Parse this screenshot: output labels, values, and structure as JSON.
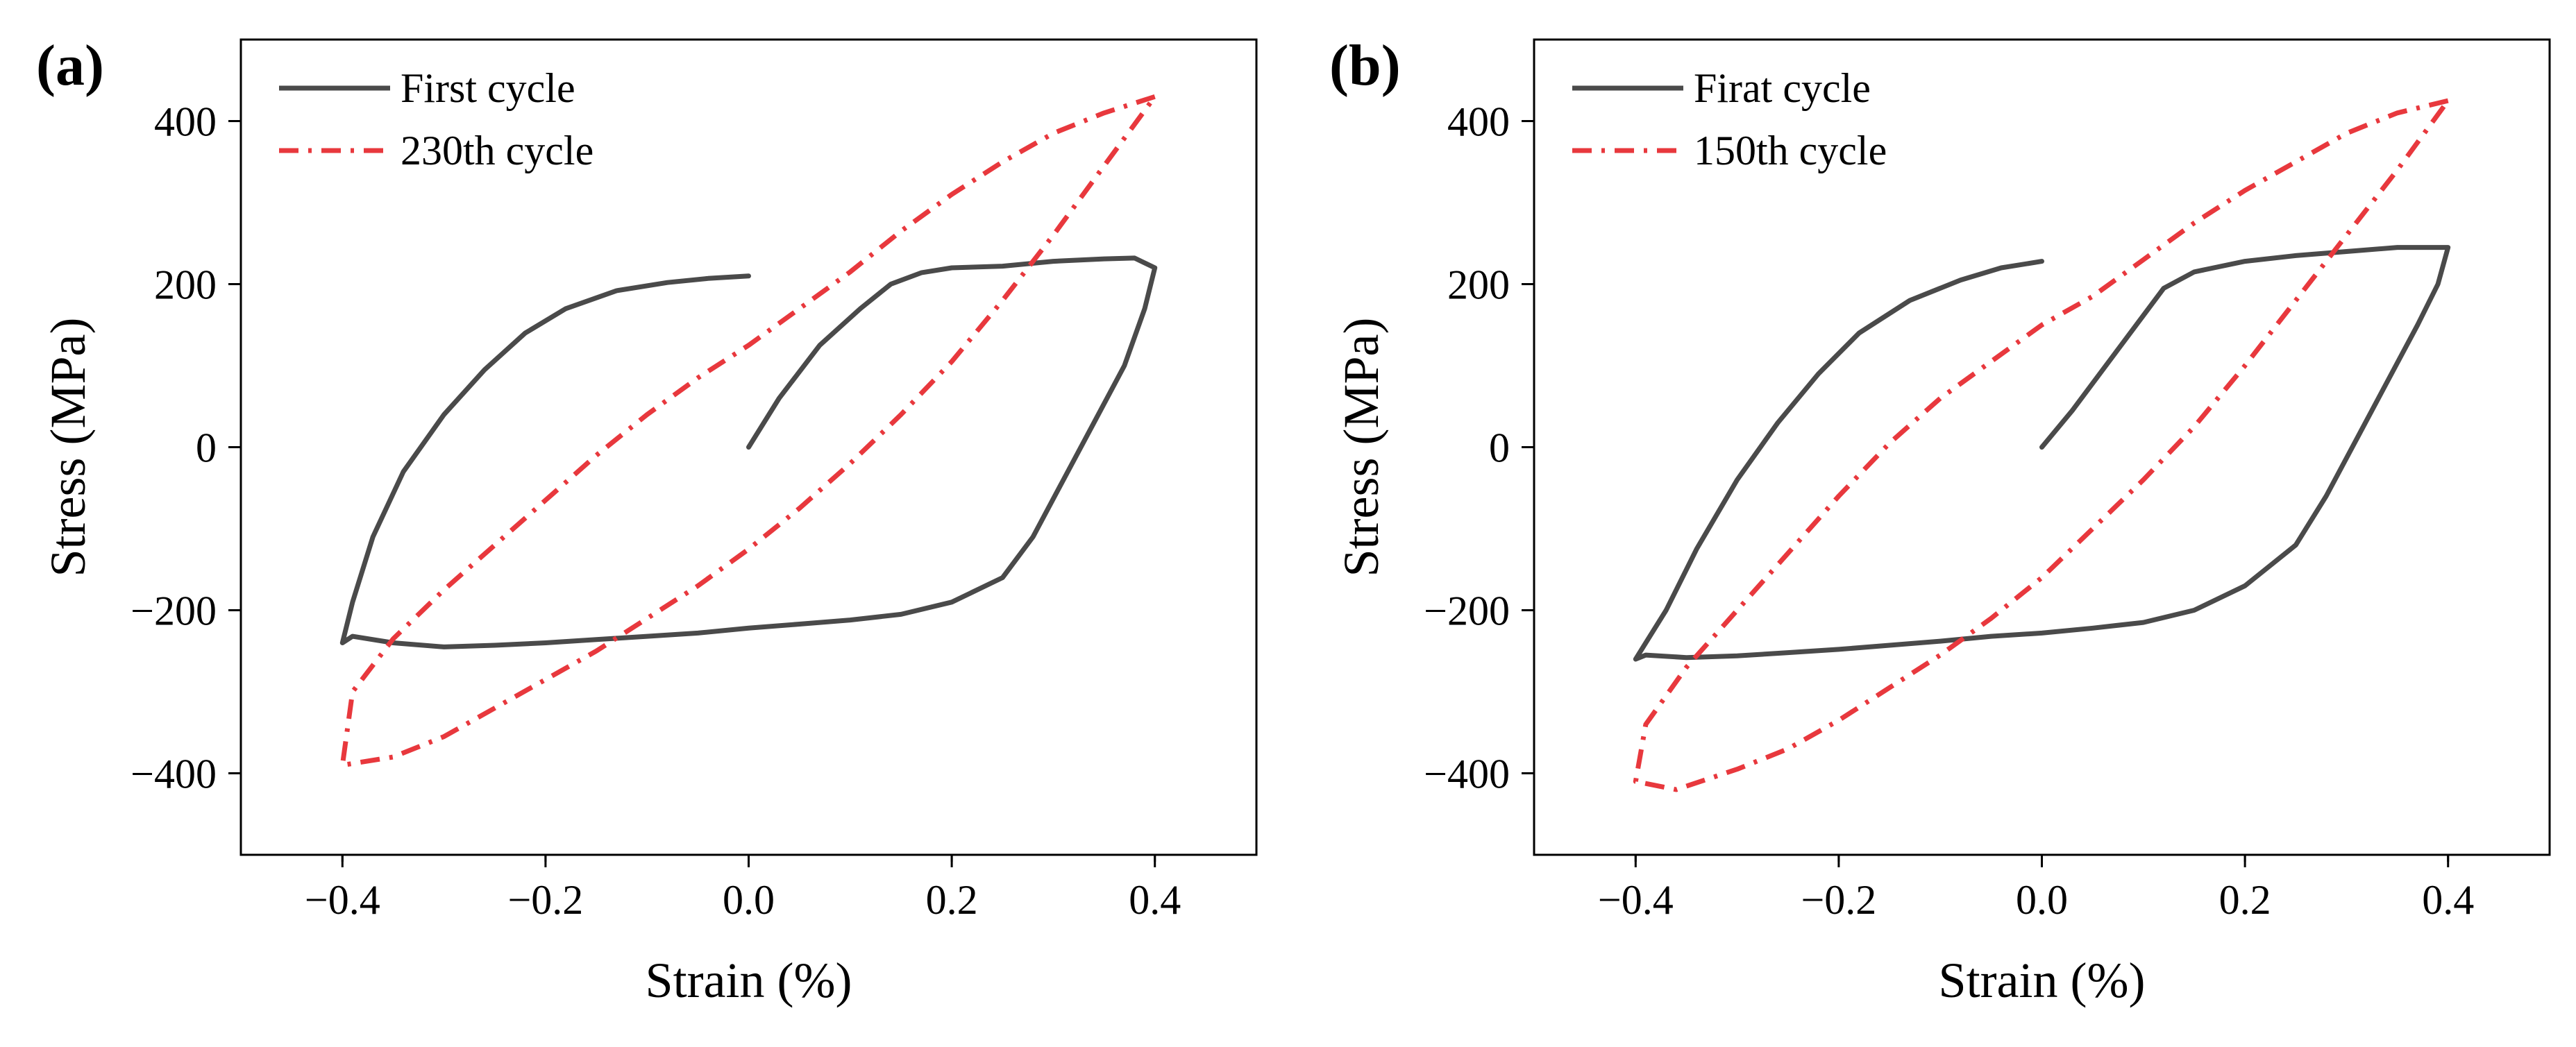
{
  "chart_data": [
    {
      "type": "line",
      "panel_label": "(a)",
      "xlabel": "Strain (%)",
      "ylabel": "Stress (MPa)",
      "xlim": [
        -0.5,
        0.5
      ],
      "ylim": [
        -500,
        500
      ],
      "xticks": [
        -0.4,
        -0.2,
        0.0,
        0.2,
        0.4
      ],
      "xtick_labels": [
        "−0.4",
        "−0.2",
        "0.0",
        "0.2",
        "0.4"
      ],
      "yticks": [
        -400,
        -200,
        0,
        200,
        400
      ],
      "ytick_labels": [
        "−400",
        "−200",
        "0",
        "200",
        "400"
      ],
      "legend_position": "top-left",
      "series": [
        {
          "name": "First cycle",
          "style": "solid",
          "color": "#4a4a4a",
          "x": [
            0.0,
            0.03,
            0.07,
            0.11,
            0.14,
            0.17,
            0.2,
            0.25,
            0.3,
            0.35,
            0.38,
            0.4,
            0.39,
            0.37,
            0.34,
            0.31,
            0.28,
            0.25,
            0.2,
            0.15,
            0.1,
            0.05,
            0.0,
            -0.05,
            -0.1,
            -0.15,
            -0.2,
            -0.25,
            -0.3,
            -0.35,
            -0.39,
            -0.4,
            -0.39,
            -0.37,
            -0.34,
            -0.3,
            -0.26,
            -0.22,
            -0.18,
            -0.13,
            -0.08,
            -0.04,
            0.0
          ],
          "y": [
            0,
            60,
            125,
            170,
            200,
            214,
            220,
            222,
            228,
            231,
            232,
            220,
            170,
            100,
            30,
            -40,
            -110,
            -160,
            -190,
            -205,
            -212,
            -217,
            -222,
            -228,
            -232,
            -236,
            -240,
            -243,
            -245,
            -240,
            -232,
            -240,
            -190,
            -110,
            -30,
            40,
            95,
            140,
            170,
            192,
            202,
            207,
            210
          ]
        },
        {
          "name": "230th cycle",
          "style": "dash-dot",
          "color": "#e8383d",
          "x": [
            0.4,
            0.35,
            0.3,
            0.25,
            0.2,
            0.15,
            0.1,
            0.05,
            0.0,
            -0.05,
            -0.1,
            -0.15,
            -0.2,
            -0.25,
            -0.3,
            -0.35,
            -0.39,
            -0.4,
            -0.35,
            -0.3,
            -0.25,
            -0.2,
            -0.15,
            -0.1,
            -0.05,
            0.0,
            0.05,
            0.1,
            0.15,
            0.2,
            0.25,
            0.3,
            0.35,
            0.4
          ],
          "y": [
            430,
            410,
            385,
            350,
            310,
            265,
            215,
            170,
            125,
            85,
            40,
            -10,
            -65,
            -120,
            -175,
            -235,
            -300,
            -390,
            -380,
            -355,
            -320,
            -285,
            -250,
            -210,
            -170,
            -125,
            -75,
            -20,
            40,
            105,
            180,
            260,
            345,
            430
          ]
        }
      ]
    },
    {
      "type": "line",
      "panel_label": "(b)",
      "xlabel": "Strain (%)",
      "ylabel": "Stress (MPa)",
      "xlim": [
        -0.5,
        0.5
      ],
      "ylim": [
        -500,
        500
      ],
      "xticks": [
        -0.4,
        -0.2,
        0.0,
        0.2,
        0.4
      ],
      "xtick_labels": [
        "−0.4",
        "−0.2",
        "0.0",
        "0.2",
        "0.4"
      ],
      "yticks": [
        -400,
        -200,
        0,
        200,
        400
      ],
      "ytick_labels": [
        "−400",
        "−200",
        "0",
        "200",
        "400"
      ],
      "legend_position": "top-left",
      "series": [
        {
          "name": "Firat cycle",
          "style": "solid",
          "color": "#4a4a4a",
          "x": [
            0.0,
            0.03,
            0.06,
            0.09,
            0.12,
            0.15,
            0.2,
            0.25,
            0.3,
            0.35,
            0.4,
            0.39,
            0.37,
            0.34,
            0.31,
            0.28,
            0.25,
            0.2,
            0.15,
            0.1,
            0.05,
            0.0,
            -0.05,
            -0.1,
            -0.15,
            -0.2,
            -0.25,
            -0.3,
            -0.35,
            -0.39,
            -0.4,
            -0.39,
            -0.37,
            -0.34,
            -0.3,
            -0.26,
            -0.22,
            -0.18,
            -0.13,
            -0.08,
            -0.04,
            0.0
          ],
          "y": [
            0,
            45,
            95,
            145,
            195,
            215,
            228,
            235,
            240,
            245,
            245,
            200,
            150,
            80,
            10,
            -60,
            -120,
            -170,
            -200,
            -215,
            -222,
            -228,
            -232,
            -238,
            -243,
            -248,
            -252,
            -256,
            -258,
            -255,
            -260,
            -240,
            -200,
            -125,
            -40,
            30,
            90,
            140,
            180,
            205,
            220,
            228
          ]
        },
        {
          "name": "150th cycle",
          "style": "dash-dot",
          "color": "#e8383d",
          "x": [
            0.4,
            0.35,
            0.3,
            0.25,
            0.2,
            0.15,
            0.1,
            0.05,
            0.0,
            -0.05,
            -0.1,
            -0.15,
            -0.2,
            -0.25,
            -0.3,
            -0.35,
            -0.39,
            -0.4,
            -0.36,
            -0.3,
            -0.25,
            -0.2,
            -0.15,
            -0.1,
            -0.05,
            0.0,
            0.05,
            0.1,
            0.15,
            0.2,
            0.25,
            0.3,
            0.35,
            0.4
          ],
          "y": [
            425,
            410,
            385,
            350,
            315,
            275,
            230,
            185,
            150,
            105,
            60,
            5,
            -60,
            -130,
            -200,
            -270,
            -340,
            -410,
            -420,
            -395,
            -370,
            -335,
            -295,
            -255,
            -210,
            -160,
            -100,
            -40,
            25,
            100,
            180,
            260,
            340,
            425
          ]
        }
      ]
    }
  ]
}
